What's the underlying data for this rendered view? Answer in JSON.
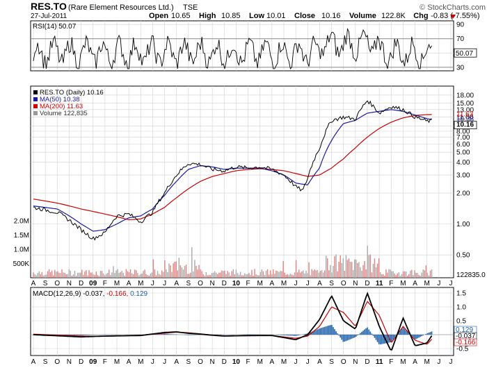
{
  "header": {
    "symbol": "RES.TO",
    "company": "(Rare Element Resources Ltd.)",
    "exchange": "TSE",
    "date": "27-Jul-2011",
    "brand": "© StockCharts.com",
    "quote": [
      {
        "label": "Open",
        "value": "10.65"
      },
      {
        "label": "High",
        "value": "10.85"
      },
      {
        "label": "Low",
        "value": "10.01"
      },
      {
        "label": "Close",
        "value": "10.16"
      },
      {
        "label": "Volume",
        "value": "122.8K"
      },
      {
        "label": "Chg",
        "value": "-0.83 (-7.55%)"
      }
    ],
    "chg_arrow": "down-triangle-icon"
  },
  "chart_data": [
    {
      "type": "line",
      "title": "RSI(14) 50.07",
      "series": [
        {
          "name": "RSI(14)",
          "last": 50.07
        }
      ],
      "ylim": [
        25,
        95
      ],
      "yticks": [
        90,
        70,
        50,
        30
      ],
      "reference_lines": [
        70,
        30
      ],
      "last_label": "50.07"
    },
    {
      "type": "line",
      "title": "RES.TO (Daily) 10.16",
      "scale": "log",
      "ylim": [
        0.3,
        22
      ],
      "yticks": [
        18,
        15,
        13,
        11,
        9,
        8,
        7,
        6,
        5,
        4,
        3,
        2,
        1,
        0.5
      ],
      "ytick_labels": [
        "18.00",
        "15.00",
        "13.00",
        "11.00",
        "9.00",
        "8.00",
        "7.00",
        "6.00",
        "5.00",
        "4.00",
        "3.00",
        "2.00",
        "1.00",
        "0.50"
      ],
      "legend": [
        {
          "name": "RES.TO (Daily) 10.16",
          "color": "#000000"
        },
        {
          "name": "MA(50) 10.38",
          "color": "#1a1aa0"
        },
        {
          "name": "MA(200) 11.63",
          "color": "#cc0000"
        },
        {
          "name": "Volume 122,835",
          "color": "#999999"
        }
      ],
      "price_anchors": [
        [
          0,
          1.45
        ],
        [
          2,
          1.3
        ],
        [
          4,
          0.88
        ],
        [
          5,
          0.72
        ],
        [
          6,
          0.82
        ],
        [
          7,
          1.2
        ],
        [
          8,
          1.25
        ],
        [
          9,
          1.05
        ],
        [
          10,
          1.3
        ],
        [
          11,
          2.0
        ],
        [
          12,
          3.0
        ],
        [
          13,
          3.9
        ],
        [
          14,
          3.8
        ],
        [
          15,
          3.4
        ],
        [
          16,
          3.3
        ],
        [
          17,
          3.6
        ],
        [
          18,
          3.5
        ],
        [
          19,
          3.6
        ],
        [
          20,
          3.4
        ],
        [
          21,
          3.0
        ],
        [
          22,
          2.3
        ],
        [
          22.6,
          2.1
        ],
        [
          23,
          2.8
        ],
        [
          24,
          5.5
        ],
        [
          25,
          10.2
        ],
        [
          26,
          11.0
        ],
        [
          27,
          10.5
        ],
        [
          28,
          16.0
        ],
        [
          29,
          12.0
        ],
        [
          30,
          14.0
        ],
        [
          31,
          13.0
        ],
        [
          32,
          11.0
        ],
        [
          33,
          10.0
        ],
        [
          33.4,
          10.16
        ]
      ],
      "ma50_anchors": [
        [
          0,
          1.5
        ],
        [
          2,
          1.4
        ],
        [
          4,
          1.0
        ],
        [
          5,
          0.85
        ],
        [
          6,
          0.88
        ],
        [
          7,
          1.0
        ],
        [
          8,
          1.15
        ],
        [
          9,
          1.2
        ],
        [
          10,
          1.4
        ],
        [
          11,
          1.9
        ],
        [
          12,
          2.6
        ],
        [
          13,
          3.4
        ],
        [
          14,
          3.7
        ],
        [
          15,
          3.6
        ],
        [
          16,
          3.4
        ],
        [
          17,
          3.5
        ],
        [
          18,
          3.5
        ],
        [
          19,
          3.5
        ],
        [
          20,
          3.3
        ],
        [
          21,
          3.0
        ],
        [
          22,
          2.5
        ],
        [
          23,
          2.4
        ],
        [
          24,
          3.5
        ],
        [
          25,
          6.5
        ],
        [
          26,
          9.5
        ],
        [
          27,
          10.2
        ],
        [
          28,
          12.0
        ],
        [
          29,
          12.5
        ],
        [
          30,
          13.0
        ],
        [
          31,
          12.5
        ],
        [
          32,
          11.5
        ],
        [
          33,
          10.6
        ],
        [
          33.4,
          10.38
        ]
      ],
      "ma200_anchors": [
        [
          0,
          1.75
        ],
        [
          2,
          1.6
        ],
        [
          4,
          1.4
        ],
        [
          6,
          1.25
        ],
        [
          8,
          1.1
        ],
        [
          9,
          1.12
        ],
        [
          10,
          1.25
        ],
        [
          11,
          1.45
        ],
        [
          12,
          1.8
        ],
        [
          13,
          2.2
        ],
        [
          14,
          2.6
        ],
        [
          15,
          2.9
        ],
        [
          16,
          3.1
        ],
        [
          17,
          3.3
        ],
        [
          18,
          3.4
        ],
        [
          19,
          3.45
        ],
        [
          20,
          3.4
        ],
        [
          21,
          3.3
        ],
        [
          22,
          3.1
        ],
        [
          23,
          2.9
        ],
        [
          24,
          3.0
        ],
        [
          25,
          3.5
        ],
        [
          26,
          4.3
        ],
        [
          27,
          5.5
        ],
        [
          28,
          7.0
        ],
        [
          29,
          8.5
        ],
        [
          30,
          9.8
        ],
        [
          31,
          10.8
        ],
        [
          32,
          11.4
        ],
        [
          33,
          11.6
        ],
        [
          33.4,
          11.63
        ]
      ],
      "last_price_labels": [
        {
          "text": "11.63",
          "color": "#cc0000"
        },
        {
          "text": "10.38",
          "color": "#1a1aa0"
        },
        {
          "text": "10.16",
          "color": "#000000"
        }
      ]
    },
    {
      "type": "bar",
      "title": "Volume",
      "ylim": [
        0,
        2200000
      ],
      "yticks": [
        2000000,
        1500000,
        1000000,
        500000
      ],
      "ytick_labels": [
        "2.0M",
        "1.5M",
        "1.0M",
        "500K"
      ],
      "last_label": "122835.0"
    },
    {
      "type": "line",
      "title": "MACD(12,26,9)",
      "values": {
        "macd": "-0.037",
        "signal": "-0.166",
        "histogram": "0.129"
      },
      "ylim": [
        -0.75,
        1.7
      ],
      "yticks": [
        1.5,
        1.0,
        0.5,
        -0.5
      ],
      "ytick_labels": [
        "1.5",
        "1.0",
        "0.5",
        "-0.5"
      ],
      "macd_anchors": [
        [
          0,
          0.0
        ],
        [
          4,
          -0.08
        ],
        [
          6,
          -0.05
        ],
        [
          9,
          -0.03
        ],
        [
          11,
          0.08
        ],
        [
          12,
          0.1
        ],
        [
          13,
          0.05
        ],
        [
          14,
          0.02
        ],
        [
          15,
          -0.02
        ],
        [
          16,
          -0.05
        ],
        [
          18,
          -0.03
        ],
        [
          20,
          -0.03
        ],
        [
          22,
          -0.18
        ],
        [
          23,
          0.0
        ],
        [
          24,
          0.55
        ],
        [
          25,
          1.4
        ],
        [
          26,
          0.5
        ],
        [
          27,
          0.2
        ],
        [
          28,
          1.5
        ],
        [
          29,
          0.3
        ],
        [
          30,
          -0.6
        ],
        [
          31,
          0.6
        ],
        [
          32,
          -0.4
        ],
        [
          33,
          -0.3
        ],
        [
          33.4,
          -0.037
        ]
      ],
      "signal_anchors": [
        [
          0,
          0.02
        ],
        [
          4,
          -0.05
        ],
        [
          6,
          -0.06
        ],
        [
          9,
          -0.02
        ],
        [
          11,
          0.05
        ],
        [
          12,
          0.09
        ],
        [
          13,
          0.07
        ],
        [
          14,
          0.03
        ],
        [
          15,
          -0.01
        ],
        [
          16,
          -0.04
        ],
        [
          18,
          -0.04
        ],
        [
          20,
          -0.03
        ],
        [
          22,
          -0.13
        ],
        [
          23,
          -0.05
        ],
        [
          24,
          0.3
        ],
        [
          25,
          1.0
        ],
        [
          26,
          0.8
        ],
        [
          27,
          0.3
        ],
        [
          28,
          1.2
        ],
        [
          29,
          0.7
        ],
        [
          30,
          -0.3
        ],
        [
          31,
          0.3
        ],
        [
          32,
          -0.2
        ],
        [
          33,
          -0.35
        ],
        [
          33.4,
          -0.166
        ]
      ],
      "last_labels": [
        {
          "text": "0.129",
          "color": "#1a5fa8"
        },
        {
          "text": "-0.037",
          "color": "#000000"
        },
        {
          "text": "-0.166",
          "color": "#cc0000"
        }
      ]
    }
  ],
  "x_axis": {
    "labels": [
      "A",
      "S",
      "O",
      "N",
      "D",
      "09",
      "F",
      "M",
      "A",
      "M",
      "J",
      "J",
      "A",
      "S",
      "O",
      "N",
      "D",
      "10",
      "F",
      "M",
      "A",
      "M",
      "J",
      "J",
      "A",
      "S",
      "O",
      "N",
      "D",
      "11",
      "F",
      "M",
      "A",
      "M",
      "J",
      "J"
    ],
    "bold_indices": [
      5,
      17,
      29
    ]
  },
  "colors": {
    "price": "#000000",
    "ma50": "#1a1aa0",
    "ma200": "#cc0000",
    "volume_up": "#a8a8a8",
    "volume_down": "#e08080",
    "histogram": "#1a5fa8",
    "grid": "#d0d0d0"
  }
}
